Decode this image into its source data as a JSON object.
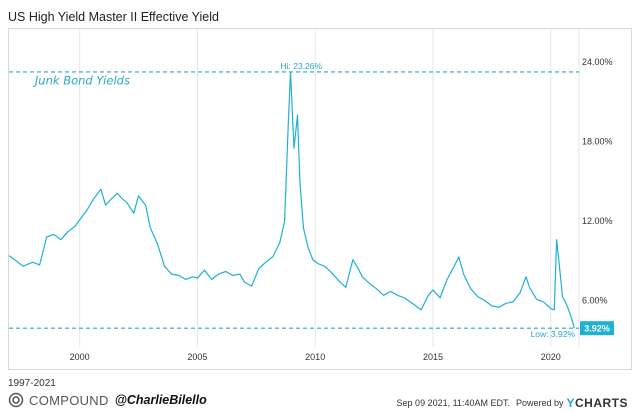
{
  "brand": {
    "range": "1997-2021",
    "name": "COMPOUND",
    "handle": "@CharlieBilello",
    "footer_time": "Sep 09 2021, 11:40AM EDT.",
    "powered_by": "Powered by",
    "ycharts_y": "Y",
    "ycharts_rest": "CHARTS"
  },
  "colors": {
    "line": "#1fb1d4",
    "annotation": "#2aa8c7",
    "grid": "#e6e6e6"
  },
  "chart_data": {
    "type": "line",
    "title": "US High Yield Master II Effective Yield",
    "annotation": "Junk Bond Yields",
    "xlabel": "",
    "ylabel": "",
    "xlim": [
      1997.0,
      2021.2
    ],
    "ylim": [
      2.5,
      26.5
    ],
    "x_ticks": [
      2000,
      2005,
      2010,
      2015,
      2020
    ],
    "x_tick_labels": [
      "2000",
      "2005",
      "2010",
      "2015",
      "2020"
    ],
    "y_ticks": [
      6,
      12,
      18,
      24
    ],
    "y_tick_labels": [
      "6.00%",
      "12.00%",
      "18.00%",
      "24.00%"
    ],
    "hi": {
      "value": 23.26,
      "x": 2008.9,
      "label": "Hi: 23.26%"
    },
    "low": {
      "value": 3.92,
      "x": 2021.0,
      "label": "Low: 3.92%"
    },
    "current": {
      "value": 3.92,
      "label": "3.92%"
    },
    "series": [
      {
        "name": "US High Yield Master II Effective Yield",
        "x": [
          1997.0,
          1997.3,
          1997.6,
          1998.0,
          1998.3,
          1998.6,
          1998.9,
          1999.2,
          1999.5,
          1999.8,
          2000.0,
          2000.3,
          2000.6,
          2000.9,
          2001.1,
          2001.3,
          2001.6,
          2001.8,
          2002.0,
          2002.3,
          2002.5,
          2002.8,
          2003.0,
          2003.3,
          2003.6,
          2003.9,
          2004.2,
          2004.5,
          2004.8,
          2005.0,
          2005.3,
          2005.6,
          2005.9,
          2006.2,
          2006.5,
          2006.8,
          2007.0,
          2007.3,
          2007.6,
          2007.9,
          2008.2,
          2008.5,
          2008.7,
          2008.85,
          2008.95,
          2009.1,
          2009.25,
          2009.35,
          2009.5,
          2009.7,
          2009.9,
          2010.1,
          2010.4,
          2010.7,
          2011.0,
          2011.3,
          2011.6,
          2011.8,
          2012.0,
          2012.3,
          2012.6,
          2012.9,
          2013.2,
          2013.5,
          2013.8,
          2014.2,
          2014.5,
          2014.8,
          2015.0,
          2015.3,
          2015.6,
          2015.9,
          2016.1,
          2016.3,
          2016.6,
          2016.9,
          2017.2,
          2017.5,
          2017.8,
          2018.1,
          2018.4,
          2018.7,
          2018.95,
          2019.1,
          2019.4,
          2019.7,
          2020.0,
          2020.15,
          2020.25,
          2020.35,
          2020.5,
          2020.7,
          2020.9,
          2021.0
        ],
        "y": [
          9.4,
          9.0,
          8.6,
          8.9,
          8.7,
          10.8,
          11.0,
          10.6,
          11.2,
          11.6,
          12.1,
          12.8,
          13.7,
          14.4,
          13.2,
          13.6,
          14.1,
          13.7,
          13.4,
          12.6,
          13.9,
          13.2,
          11.5,
          10.3,
          8.6,
          8.0,
          7.9,
          7.6,
          7.8,
          7.7,
          8.3,
          7.6,
          8.0,
          8.2,
          7.9,
          8.0,
          7.4,
          7.1,
          8.4,
          8.9,
          9.3,
          10.4,
          12.0,
          19.0,
          23.26,
          17.5,
          20.0,
          15.0,
          11.5,
          10.0,
          9.1,
          8.8,
          8.6,
          8.1,
          7.5,
          7.0,
          9.1,
          8.5,
          7.8,
          7.3,
          6.9,
          6.4,
          6.7,
          6.4,
          6.2,
          5.7,
          5.3,
          6.4,
          6.8,
          6.2,
          7.6,
          8.6,
          9.3,
          8.0,
          6.9,
          6.3,
          6.0,
          5.6,
          5.5,
          5.8,
          5.9,
          6.6,
          7.8,
          7.0,
          6.1,
          5.9,
          5.4,
          5.3,
          10.6,
          8.9,
          6.3,
          5.6,
          4.6,
          3.92
        ]
      }
    ]
  }
}
